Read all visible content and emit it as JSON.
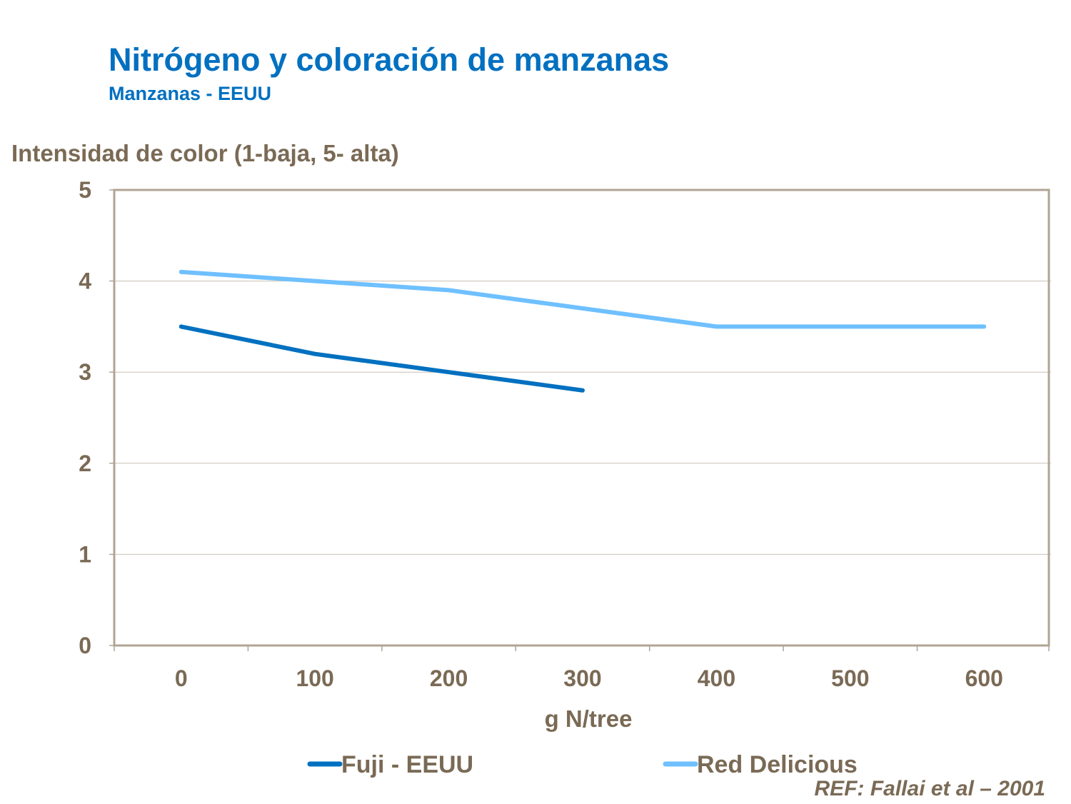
{
  "chart_data": {
    "type": "line",
    "title": "Nitrógeno y coloración de manzanas",
    "subtitle": "Manzanas - EEUU",
    "ylabel": "Intensidad de color (1-baja, 5- alta)",
    "xlabel": "g N/tree",
    "categories": [
      "0",
      "100",
      "200",
      "300",
      "400",
      "500",
      "600"
    ],
    "ylim": [
      0,
      5
    ],
    "yticks": [
      "0",
      "1",
      "2",
      "3",
      "4",
      "5"
    ],
    "grid": true,
    "legend": "bottom",
    "series": [
      {
        "name": "Fuji - EEUU",
        "color": "#0070C0",
        "values": [
          3.5,
          3.2,
          3.0,
          2.8,
          null,
          null,
          null
        ]
      },
      {
        "name": "Red Delicious",
        "color": "#6FC0FF",
        "values": [
          4.1,
          4.0,
          3.9,
          3.7,
          3.5,
          3.5,
          3.5
        ]
      }
    ],
    "note": "REF: Fallai et al – 2001"
  }
}
